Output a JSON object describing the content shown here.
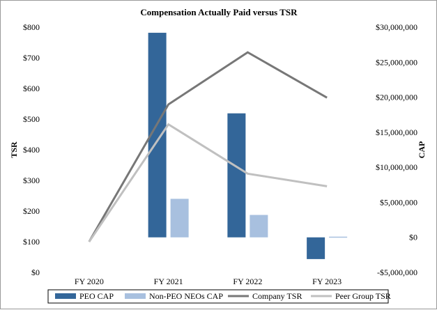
{
  "chart_data": {
    "type": "bar",
    "title": "Compensation Actually Paid versus TSR",
    "categories": [
      "FY 2020",
      "FY 2021",
      "FY 2022",
      "FY 2023"
    ],
    "left_axis": {
      "label": "TSR",
      "range": [
        0,
        800
      ],
      "ticks": [
        0,
        100,
        200,
        300,
        400,
        500,
        600,
        700,
        800
      ],
      "tick_labels": [
        "$0",
        "$100",
        "$200",
        "$300",
        "$400",
        "$500",
        "$600",
        "$700",
        "$800"
      ]
    },
    "right_axis": {
      "label": "CAP",
      "range": [
        -5000000,
        30000000
      ],
      "ticks": [
        -5000000,
        0,
        5000000,
        10000000,
        15000000,
        20000000,
        25000000,
        30000000
      ],
      "tick_labels": [
        "-$5,000,000",
        "$0",
        "$5,000,000",
        "$10,000,000",
        "$15,000,000",
        "$20,000,000",
        "$25,000,000",
        "$30,000,000"
      ]
    },
    "bar_series": [
      {
        "name": "PEO CAP",
        "color": "#336699",
        "axis": "right",
        "values": [
          null,
          29200000,
          17700000,
          -3100000
        ]
      },
      {
        "name": "Non-PEO NEOs CAP",
        "color": "#a8c0df",
        "axis": "right",
        "values": [
          null,
          5500000,
          3200000,
          100000
        ]
      }
    ],
    "line_series": [
      {
        "name": "Company TSR",
        "color": "#777777",
        "axis": "left",
        "values": [
          100,
          548,
          718,
          570
        ]
      },
      {
        "name": "Peer Group TSR",
        "color": "#c0c0c0",
        "axis": "left",
        "values": [
          100,
          483,
          322,
          281
        ]
      }
    ],
    "legend": [
      "PEO CAP",
      "Non-PEO NEOs CAP",
      "Company TSR",
      "Peer Group TSR"
    ],
    "legend_position": "bottom",
    "grid": false
  }
}
